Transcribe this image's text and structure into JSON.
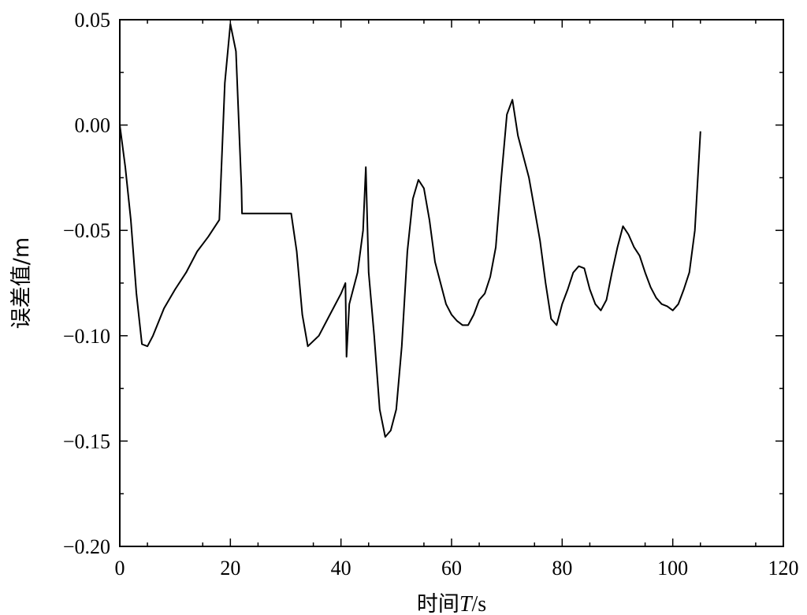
{
  "chart_data": {
    "type": "line",
    "title": "",
    "xlabel": {
      "prefix": "时间",
      "symbol": "T",
      "suffix": "/s"
    },
    "ylabel": "误差值/m",
    "xlim": [
      0,
      120
    ],
    "ylim": [
      -0.2,
      0.05
    ],
    "grid": false,
    "line_color": "#000000",
    "x_ticks": [
      0,
      20,
      40,
      60,
      80,
      100,
      120
    ],
    "x_tick_labels": [
      "0",
      "20",
      "40",
      "60",
      "80",
      "100",
      "120"
    ],
    "y_ticks": [
      0.05,
      0.0,
      -0.05,
      -0.1,
      -0.15,
      -0.2
    ],
    "y_tick_labels": [
      "0.05",
      "0.00",
      "−0.05",
      "−0.10",
      "−0.15",
      "−0.20"
    ],
    "series": [
      {
        "x": [
          0,
          1,
          2,
          3,
          4,
          5,
          6,
          8,
          10,
          12,
          14,
          16,
          18,
          19,
          20,
          21,
          22,
          22.1,
          31,
          32,
          33,
          34,
          36,
          38,
          40,
          40.8,
          41,
          41.5,
          42,
          43,
          44,
          44.5,
          45,
          46,
          47,
          48,
          49,
          50,
          51,
          52,
          53,
          54,
          55,
          56,
          57,
          58,
          59,
          60,
          61,
          62,
          63,
          64,
          65,
          66,
          67,
          68,
          69,
          70,
          71,
          72,
          73,
          74,
          75,
          76,
          77,
          78,
          79,
          80,
          81,
          82,
          83,
          84,
          85,
          86,
          87,
          88,
          89,
          90,
          91,
          92,
          93,
          94,
          95,
          96,
          97,
          98,
          99,
          100,
          101,
          102,
          103,
          104,
          105
        ],
        "y": [
          0.0,
          -0.02,
          -0.045,
          -0.08,
          -0.104,
          -0.105,
          -0.1,
          -0.087,
          -0.078,
          -0.07,
          -0.06,
          -0.053,
          -0.045,
          0.02,
          0.048,
          0.035,
          -0.03,
          -0.042,
          -0.042,
          -0.06,
          -0.09,
          -0.105,
          -0.1,
          -0.09,
          -0.08,
          -0.075,
          -0.11,
          -0.085,
          -0.08,
          -0.07,
          -0.05,
          -0.02,
          -0.07,
          -0.1,
          -0.135,
          -0.148,
          -0.145,
          -0.135,
          -0.105,
          -0.06,
          -0.035,
          -0.026,
          -0.03,
          -0.045,
          -0.065,
          -0.075,
          -0.085,
          -0.09,
          -0.093,
          -0.095,
          -0.095,
          -0.09,
          -0.083,
          -0.08,
          -0.072,
          -0.058,
          -0.025,
          0.005,
          0.012,
          -0.005,
          -0.015,
          -0.025,
          -0.04,
          -0.055,
          -0.075,
          -0.092,
          -0.095,
          -0.085,
          -0.078,
          -0.07,
          -0.067,
          -0.068,
          -0.078,
          -0.085,
          -0.088,
          -0.083,
          -0.07,
          -0.058,
          -0.048,
          -0.052,
          -0.058,
          -0.062,
          -0.07,
          -0.077,
          -0.082,
          -0.085,
          -0.086,
          -0.088,
          -0.085,
          -0.078,
          -0.07,
          -0.05,
          -0.003
        ]
      }
    ]
  }
}
